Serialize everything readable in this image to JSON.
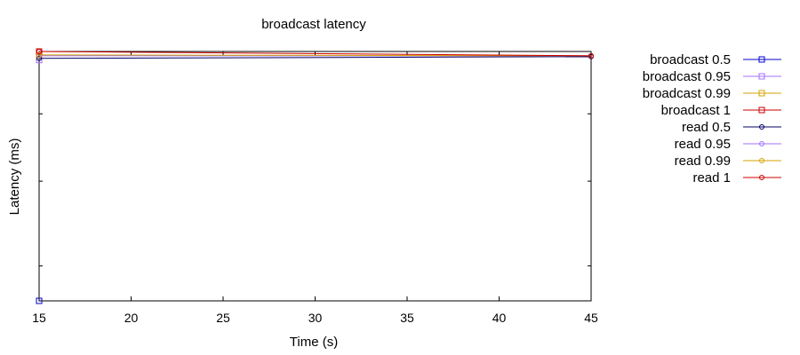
{
  "chart_data": {
    "type": "line",
    "title": "broadcast latency",
    "xlabel": "Time (s)",
    "ylabel": "Latency (ms)",
    "xlim": [
      15,
      45
    ],
    "xticks": [
      "15",
      "20",
      "25",
      "30",
      "35",
      "40",
      "45"
    ],
    "grid": false,
    "legend_position": "right",
    "series": [
      {
        "name": "broadcast 0.5",
        "color": "#0000cc",
        "marker": "square",
        "points": [
          [
            15,
            0
          ],
          [
            15,
            0
          ]
        ]
      },
      {
        "name": "broadcast 0.95",
        "color": "#a070ff",
        "marker": "square",
        "points": [
          [
            15,
            2.8
          ]
        ]
      },
      {
        "name": "broadcast 0.99",
        "color": "#d4a000",
        "marker": "square",
        "points": [
          [
            15,
            2.85
          ]
        ]
      },
      {
        "name": "broadcast 1",
        "color": "#cc0000",
        "marker": "square",
        "points": [
          [
            15,
            2.9
          ]
        ]
      },
      {
        "name": "read 0.5",
        "color": "#000066",
        "marker": "circle",
        "points": [
          [
            15,
            2.82
          ],
          [
            45,
            2.84
          ]
        ]
      },
      {
        "name": "read 0.95",
        "color": "#a070ff",
        "marker": "circle",
        "points": [
          [
            15,
            2.85
          ],
          [
            45,
            2.85
          ]
        ]
      },
      {
        "name": "read 0.99",
        "color": "#d4a000",
        "marker": "circle",
        "points": [
          [
            15,
            2.86
          ],
          [
            45,
            2.85
          ]
        ]
      },
      {
        "name": "read 1",
        "color": "#cc0000",
        "marker": "circle",
        "points": [
          [
            15,
            2.9
          ],
          [
            45,
            2.85
          ]
        ]
      }
    ],
    "ylim": [
      0,
      2.9
    ]
  }
}
